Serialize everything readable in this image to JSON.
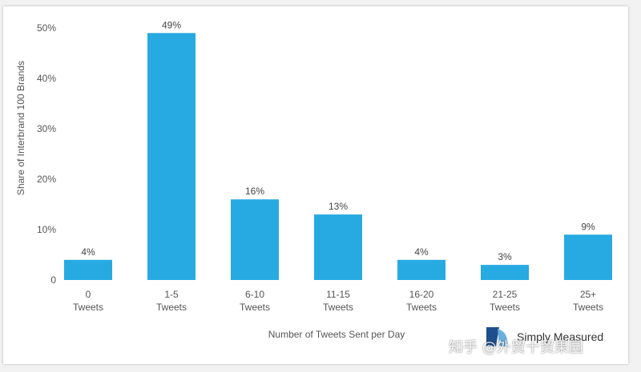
{
  "chart_data": {
    "type": "bar",
    "categories": [
      {
        "line1": "0",
        "line2": "Tweets"
      },
      {
        "line1": "1-5",
        "line2": "Tweets"
      },
      {
        "line1": "6-10",
        "line2": "Tweets"
      },
      {
        "line1": "11-15",
        "line2": "Tweets"
      },
      {
        "line1": "16-20",
        "line2": "Tweets"
      },
      {
        "line1": "21-25",
        "line2": "Tweets"
      },
      {
        "line1": "25+",
        "line2": "Tweets"
      }
    ],
    "values": [
      4,
      49,
      16,
      13,
      4,
      3,
      9
    ],
    "value_labels": [
      "4%",
      "49%",
      "16%",
      "13%",
      "4%",
      "3%",
      "9%"
    ],
    "xlabel": "Number of Tweets Sent per Day",
    "ylabel": "Share of Interbrand 100 Brands",
    "ylim": [
      0,
      50
    ],
    "yticks": [
      0,
      10,
      20,
      30,
      40,
      50
    ],
    "ytick_labels": [
      "0",
      "10%",
      "20%",
      "30%",
      "40%",
      "50%"
    ],
    "grid": false,
    "bar_color": "#27aae1"
  },
  "brand": {
    "name": "Simply Measured",
    "icon": "simply-measured-logo-icon"
  },
  "watermark": "知乎 @外贸十贸果园"
}
